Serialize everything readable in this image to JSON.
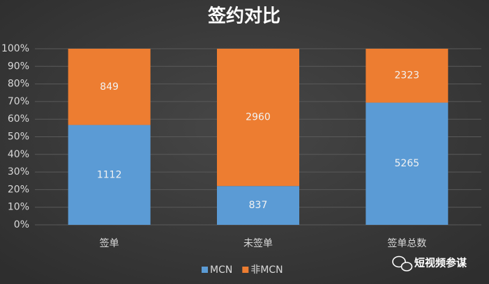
{
  "chart_data": {
    "type": "bar",
    "stacking": "percent",
    "title": "签约对比",
    "categories": [
      "签单",
      "未签单",
      "签单总数"
    ],
    "series": [
      {
        "name": "MCN",
        "color": "#5b9bd5",
        "values": [
          1112,
          837,
          5265
        ]
      },
      {
        "name": "非MCN",
        "color": "#ed7d31",
        "values": [
          849,
          2960,
          2323
        ]
      }
    ],
    "ylim": [
      0,
      100
    ],
    "yticks": [
      {
        "value": 0,
        "label": "0%"
      },
      {
        "value": 10,
        "label": "10%"
      },
      {
        "value": 20,
        "label": "20%"
      },
      {
        "value": 30,
        "label": "30%"
      },
      {
        "value": 40,
        "label": "40%"
      },
      {
        "value": 50,
        "label": "50%"
      },
      {
        "value": 60,
        "label": "60%"
      },
      {
        "value": 70,
        "label": "70%"
      },
      {
        "value": 80,
        "label": "80%"
      },
      {
        "value": 90,
        "label": "90%"
      },
      {
        "value": 100,
        "label": "100%"
      }
    ],
    "grid": true,
    "legend": "bottom",
    "watermark": "短视频参谋"
  }
}
